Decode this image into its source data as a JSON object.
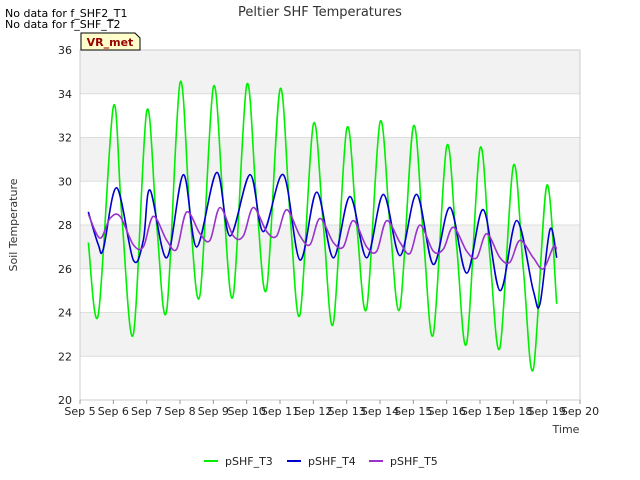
{
  "no_data_messages": [
    "No data for f_SHF2_T1",
    "No data for f_SHF_T2"
  ],
  "site_badge": "VR_met",
  "chart_data": {
    "type": "line",
    "title": "Peltier SHF Temperatures",
    "xlabel": "Time",
    "ylabel": "Soil Temperature",
    "xlim": [
      5,
      20
    ],
    "ylim": [
      20,
      36
    ],
    "x_ticks": [
      5,
      6,
      7,
      8,
      9,
      10,
      11,
      12,
      13,
      14,
      15,
      16,
      17,
      18,
      19,
      20
    ],
    "x_tick_labels": [
      "Sep 5",
      "Sep 6",
      "Sep 7",
      "Sep 8",
      "Sep 9",
      "Sep 10",
      "Sep 11",
      "Sep 12",
      "Sep 13",
      "Sep 14",
      "Sep 15",
      "Sep 16",
      "Sep 17",
      "Sep 18",
      "Sep 19",
      "Sep 20"
    ],
    "y_ticks": [
      20,
      22,
      24,
      26,
      28,
      30,
      32,
      34,
      36
    ],
    "y_tick_labels": [
      "20",
      "22",
      "24",
      "26",
      "28",
      "30",
      "32",
      "34",
      "36"
    ],
    "grid": true,
    "legend_position": "bottom-center",
    "series": [
      {
        "name": "pSHF_T3",
        "color": "#00ee00",
        "x": [
          5.25,
          5.55,
          6.0,
          6.25,
          6.6,
          7.0,
          7.3,
          7.6,
          8.0,
          8.3,
          8.6,
          9.0,
          9.3,
          9.6,
          10.0,
          10.3,
          10.6,
          11.0,
          11.3,
          11.6,
          12.0,
          12.3,
          12.6,
          13.0,
          13.3,
          13.6,
          14.0,
          14.3,
          14.6,
          15.0,
          15.3,
          15.6,
          16.0,
          16.3,
          16.6,
          17.0,
          17.3,
          17.6,
          18.0,
          18.3,
          18.6,
          19.0,
          19.3
        ],
        "y": [
          27.2,
          23.9,
          33.4,
          28.5,
          23.0,
          33.2,
          28.0,
          24.1,
          34.5,
          28.5,
          24.8,
          34.3,
          29.0,
          24.8,
          34.4,
          29.0,
          25.1,
          34.2,
          28.5,
          23.9,
          32.6,
          28.0,
          23.5,
          32.4,
          28.0,
          24.2,
          32.7,
          28.0,
          24.2,
          32.5,
          27.5,
          23.0,
          31.6,
          27.0,
          22.6,
          31.5,
          26.5,
          22.4,
          30.7,
          26.0,
          21.4,
          29.8,
          24.4
        ]
      },
      {
        "name": "pSHF_T4",
        "color": "#0000cc",
        "x": [
          5.25,
          5.55,
          5.7,
          6.1,
          6.6,
          6.9,
          7.1,
          7.6,
          8.1,
          8.5,
          9.1,
          9.5,
          10.1,
          10.5,
          11.1,
          11.6,
          12.1,
          12.6,
          13.1,
          13.6,
          14.1,
          14.6,
          15.1,
          15.6,
          16.1,
          16.6,
          17.1,
          17.6,
          18.1,
          18.6,
          18.8,
          19.1,
          19.3
        ],
        "y": [
          28.6,
          27.1,
          26.9,
          29.7,
          26.4,
          27.3,
          29.6,
          26.5,
          30.3,
          27.0,
          30.4,
          27.5,
          30.3,
          27.7,
          30.3,
          26.4,
          29.5,
          26.5,
          29.3,
          26.5,
          29.4,
          26.6,
          29.4,
          26.2,
          28.8,
          25.8,
          28.7,
          25.0,
          28.2,
          25.0,
          24.4,
          27.8,
          26.5
        ]
      },
      {
        "name": "pSHF_T5",
        "color": "#9933cc",
        "x": [
          5.25,
          5.6,
          5.9,
          6.2,
          6.6,
          6.9,
          7.2,
          7.6,
          7.9,
          8.2,
          8.6,
          8.9,
          9.2,
          9.6,
          9.9,
          10.2,
          10.6,
          10.9,
          11.2,
          11.6,
          11.9,
          12.2,
          12.6,
          12.9,
          13.2,
          13.6,
          13.9,
          14.2,
          14.6,
          14.9,
          15.2,
          15.6,
          15.9,
          16.2,
          16.6,
          16.9,
          17.2,
          17.6,
          17.9,
          18.2,
          18.6,
          18.9,
          19.2,
          19.3
        ],
        "y": [
          28.5,
          27.4,
          28.3,
          28.4,
          27.1,
          27.0,
          28.4,
          27.3,
          26.9,
          28.6,
          27.6,
          27.3,
          28.8,
          27.5,
          27.5,
          28.8,
          27.7,
          27.5,
          28.7,
          27.5,
          27.1,
          28.3,
          27.2,
          27.0,
          28.2,
          27.0,
          26.8,
          28.2,
          27.2,
          26.7,
          28.0,
          26.8,
          26.9,
          27.9,
          26.8,
          26.5,
          27.6,
          26.5,
          26.3,
          27.3,
          26.5,
          26.0,
          27.0,
          26.9
        ]
      }
    ]
  }
}
